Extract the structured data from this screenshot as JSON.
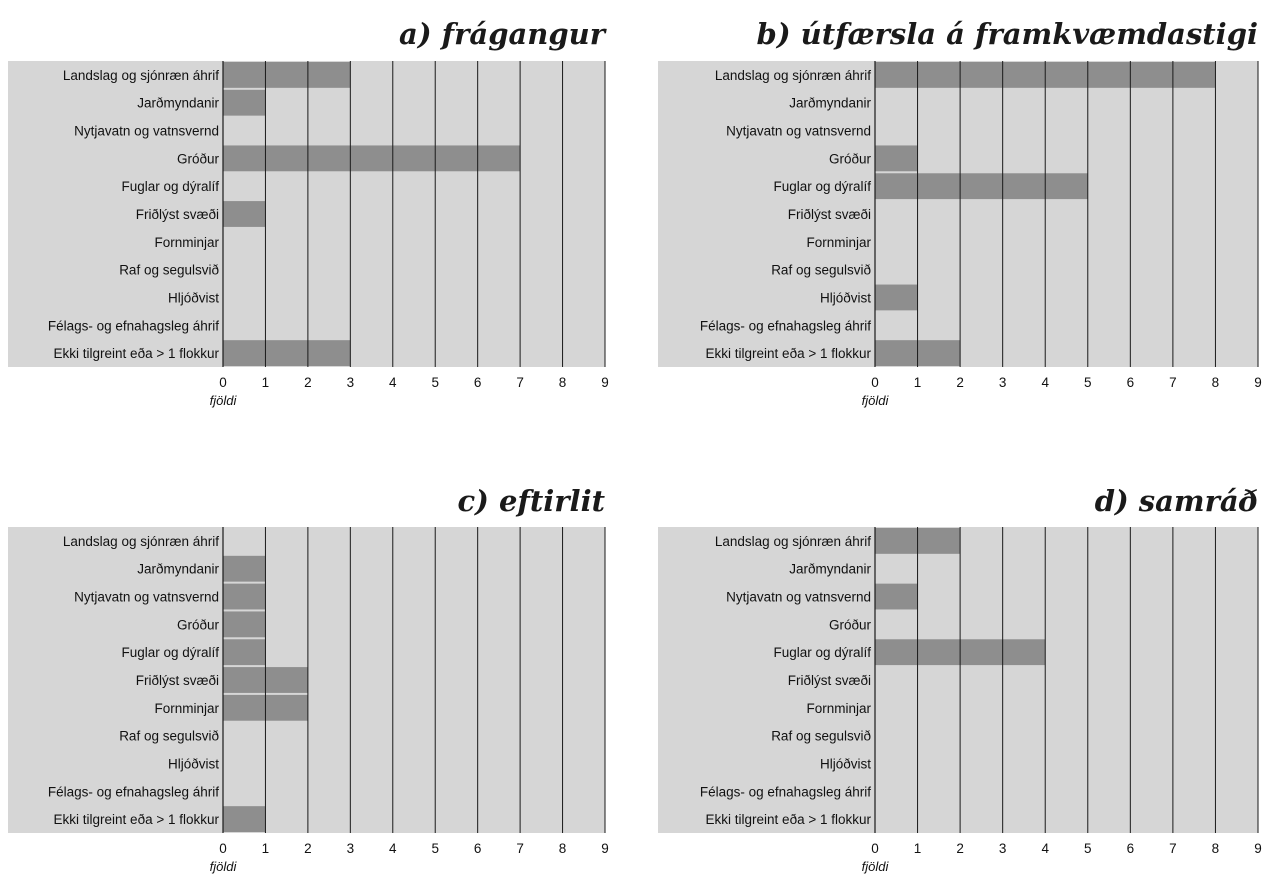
{
  "chart_data": [
    {
      "type": "bar",
      "orientation": "horizontal",
      "title": "a) frágangur",
      "xlabel": "fjöldi",
      "categories": [
        "Landslag og sjónræn áhrif",
        "Jarðmyndanir",
        "Nytjavatn og vatnsvernd",
        "Gróður",
        "Fuglar og dýralíf",
        "Friðlýst svæði",
        "Fornminjar",
        "Raf og segulsvið",
        "Hljóðvist",
        "Félags- og efnahagsleg áhrif",
        "Ekki tilgreint eða > 1 flokkur"
      ],
      "values": [
        3,
        1,
        0,
        7,
        0,
        1,
        0,
        0,
        0,
        0,
        3
      ],
      "xlim": [
        0,
        9
      ],
      "xticks": [
        "0",
        "1",
        "2",
        "3",
        "4",
        "5",
        "6",
        "7",
        "8",
        "9"
      ],
      "grid": true,
      "legend": "none"
    },
    {
      "type": "bar",
      "orientation": "horizontal",
      "title": "b) útfærsla á framkvæmdastigi",
      "xlabel": "fjöldi",
      "categories": [
        "Landslag og sjónræn áhrif",
        "Jarðmyndanir",
        "Nytjavatn og vatnsvernd",
        "Gróður",
        "Fuglar og dýralíf",
        "Friðlýst svæði",
        "Fornminjar",
        "Raf og segulsvið",
        "Hljóðvist",
        "Félags- og efnahagsleg áhrif",
        "Ekki tilgreint eða > 1 flokkur"
      ],
      "values": [
        8,
        0,
        0,
        1,
        5,
        0,
        0,
        0,
        1,
        0,
        2
      ],
      "xlim": [
        0,
        9
      ],
      "xticks": [
        "0",
        "1",
        "2",
        "3",
        "4",
        "5",
        "6",
        "7",
        "8",
        "9"
      ],
      "grid": true,
      "legend": "none"
    },
    {
      "type": "bar",
      "orientation": "horizontal",
      "title": "c) eftirlit",
      "xlabel": "fjöldi",
      "categories": [
        "Landslag og sjónræn áhrif",
        "Jarðmyndanir",
        "Nytjavatn og vatnsvernd",
        "Gróður",
        "Fuglar og dýralíf",
        "Friðlýst svæði",
        "Fornminjar",
        "Raf og segulsvið",
        "Hljóðvist",
        "Félags- og efnahagsleg áhrif",
        "Ekki tilgreint eða > 1 flokkur"
      ],
      "values": [
        0,
        1,
        1,
        1,
        1,
        2,
        2,
        0,
        0,
        0,
        1
      ],
      "xlim": [
        0,
        9
      ],
      "xticks": [
        "0",
        "1",
        "2",
        "3",
        "4",
        "5",
        "6",
        "7",
        "8",
        "9"
      ],
      "grid": true,
      "legend": "none"
    },
    {
      "type": "bar",
      "orientation": "horizontal",
      "title": "d) samráð",
      "xlabel": "fjöldi",
      "categories": [
        "Landslag og sjónræn áhrif",
        "Jarðmyndanir",
        "Nytjavatn og vatnsvernd",
        "Gróður",
        "Fuglar og dýralíf",
        "Friðlýst svæði",
        "Fornminjar",
        "Raf og segulsvið",
        "Hljóðvist",
        "Félags- og efnahagsleg áhrif",
        "Ekki tilgreint eða > 1 flokkur"
      ],
      "values": [
        2,
        0,
        1,
        0,
        4,
        0,
        0,
        0,
        0,
        0,
        0
      ],
      "xlim": [
        0,
        9
      ],
      "xticks": [
        "0",
        "1",
        "2",
        "3",
        "4",
        "5",
        "6",
        "7",
        "8",
        "9"
      ],
      "grid": true,
      "legend": "none"
    }
  ],
  "colors": {
    "background": "#d6d6d6",
    "bar": "#8e8e8e",
    "gridline": "#1a1a1a",
    "text": "#111111"
  }
}
